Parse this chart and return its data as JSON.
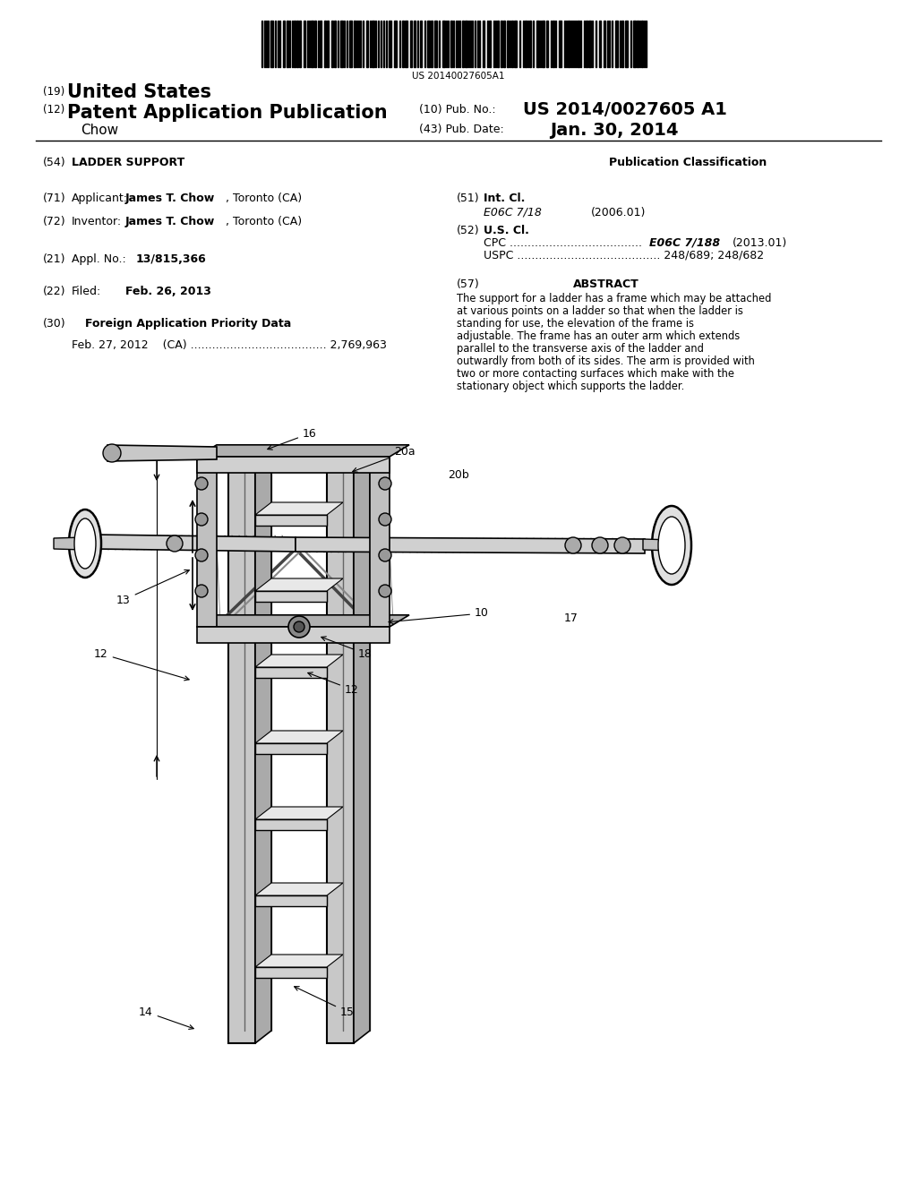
{
  "background_color": "#ffffff",
  "barcode_text": "US 20140027605A1",
  "header": {
    "line19_prefix": "(19)",
    "line19_text": "United States",
    "line12_prefix": "(12)",
    "line12_text": "Patent Application Publication",
    "pub_no_prefix": "(10) Pub. No.:",
    "pub_no_value": "US 2014/0027605 A1",
    "author": "Chow",
    "pub_date_prefix": "(43) Pub. Date:",
    "pub_date_value": "Jan. 30, 2014"
  },
  "left_col": {
    "title_num": "(54)",
    "title": "LADDER SUPPORT",
    "app_num": "(71)",
    "app_label": "Applicant:",
    "app_bold": "James T. Chow",
    "app_rest": ", Toronto (CA)",
    "inv_num": "(72)",
    "inv_label": "Inventor:",
    "inv_bold": "James T. Chow",
    "inv_rest": ", Toronto (CA)",
    "appl_num": "(21)",
    "appl_text": "Appl. No.:",
    "appl_val": "13/815,366",
    "filed_num": "(22)",
    "filed_label": "Filed:",
    "filed_val": "Feb. 26, 2013",
    "foreign_num": "(30)",
    "foreign_title": "Foreign Application Priority Data",
    "foreign_data": "Feb. 27, 2012    (CA) ...................................... 2,769,963"
  },
  "right_col": {
    "pub_class": "Publication Classification",
    "int_cl_num": "(51)",
    "int_cl_title": "Int. Cl.",
    "int_cl_val": "E06C 7/18",
    "int_cl_year": "(2006.01)",
    "us_cl_num": "(52)",
    "us_cl_title": "U.S. Cl.",
    "cpc_dots": "CPC .....................................",
    "cpc_val": "E06C 7/188",
    "cpc_year": "(2013.01)",
    "uspc_line": "USPC ........................................ 248/689; 248/682",
    "abstract_num": "(57)",
    "abstract_title": "ABSTRACT",
    "abstract_text": "The support for a ladder has a frame which may be attached at various points on a ladder so that when the ladder is standing for use, the elevation of the frame is adjustable. The frame has an outer arm which extends parallel to the transverse axis of the ladder and outwardly from both of its sides. The arm is provided with two or more contacting surfaces which make with the stationary object which supports the ladder."
  }
}
